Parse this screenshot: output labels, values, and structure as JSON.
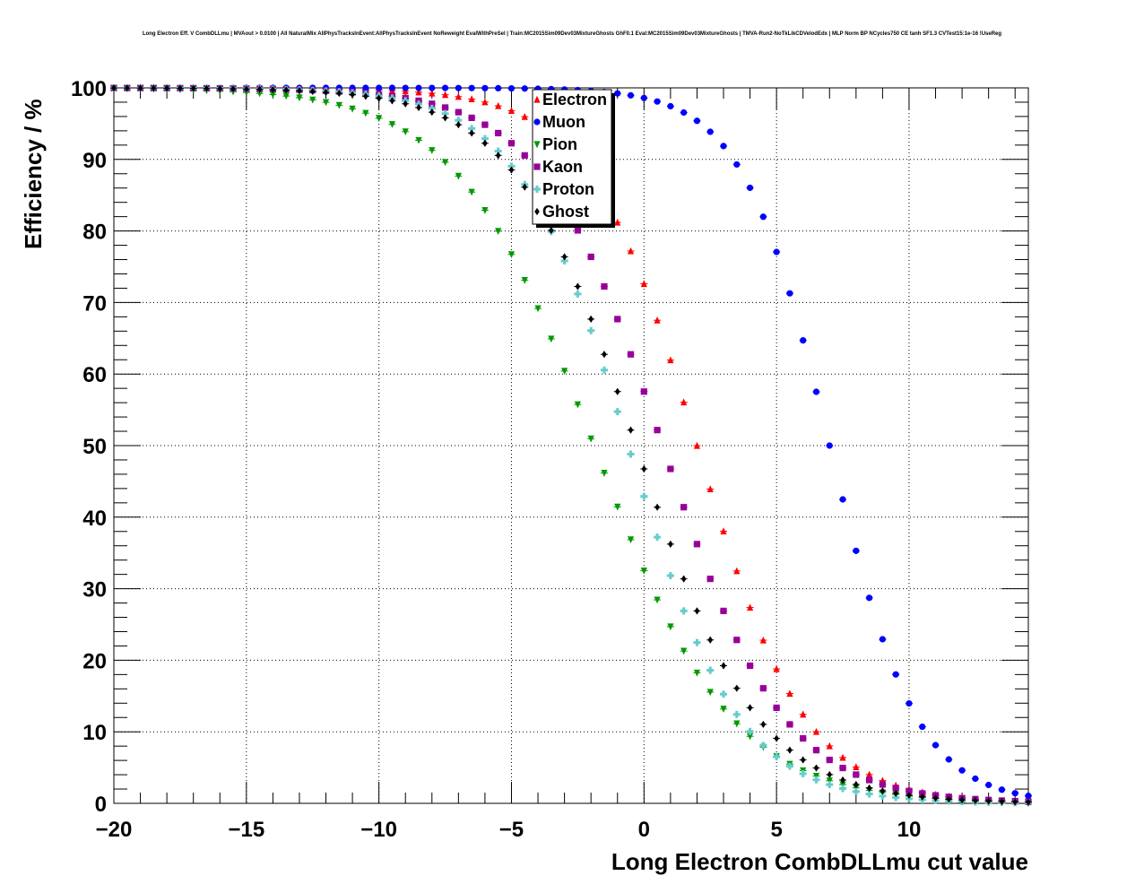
{
  "chart_data": {
    "type": "scatter",
    "title": "Long Electron Eff. V CombDLLmu | MVAout > 0.0100 | All NaturalMix AllPhysTracksInEvent:AllPhysTracksInEvent NoReweight EvalWithPreSel | Train:MC2015Sim09Dev03MixtureGhosts GhF0.1 Eval:MC2015Sim09Dev03MixtureGhosts | TMVA-Run2-NoTkLikCDVelodEdx | MLP Norm BP NCycles750 CE tanh SF1.3 CVTest15:1e-16 !UseReg",
    "xlabel": "Long Electron CombDLLmu cut value",
    "ylabel": "Efficiency / %",
    "xlim": [
      -20,
      14.5
    ],
    "ylim": [
      0,
      100
    ],
    "x_ticks": [
      "−20",
      "−15",
      "−10",
      "−5",
      "0",
      "5",
      "10"
    ],
    "y_ticks": [
      "0",
      "10",
      "20",
      "30",
      "40",
      "50",
      "60",
      "70",
      "80",
      "90",
      "100"
    ],
    "grid": true,
    "legend_position": "top-center",
    "series": [
      {
        "name": "Electron",
        "color": "#ff0000",
        "marker": "triangle-up",
        "x50": 2.0,
        "width": 2.05
      },
      {
        "name": "Muon",
        "color": "#0000ff",
        "marker": "circle",
        "x50": 7.0,
        "width": 1.65
      },
      {
        "name": "Pion",
        "color": "#009900",
        "marker": "triangle-down",
        "x50": -1.9,
        "width": 2.6
      },
      {
        "name": "Kaon",
        "color": "#990099",
        "marker": "square",
        "x50": 0.7,
        "width": 2.3
      },
      {
        "name": "Proton",
        "color": "#66cccc",
        "marker": "cross",
        "x50": -0.6,
        "width": 2.1
      },
      {
        "name": "Ghost",
        "color": "#000000",
        "marker": "diamond",
        "x50": -0.3,
        "width": 2.3
      }
    ]
  }
}
